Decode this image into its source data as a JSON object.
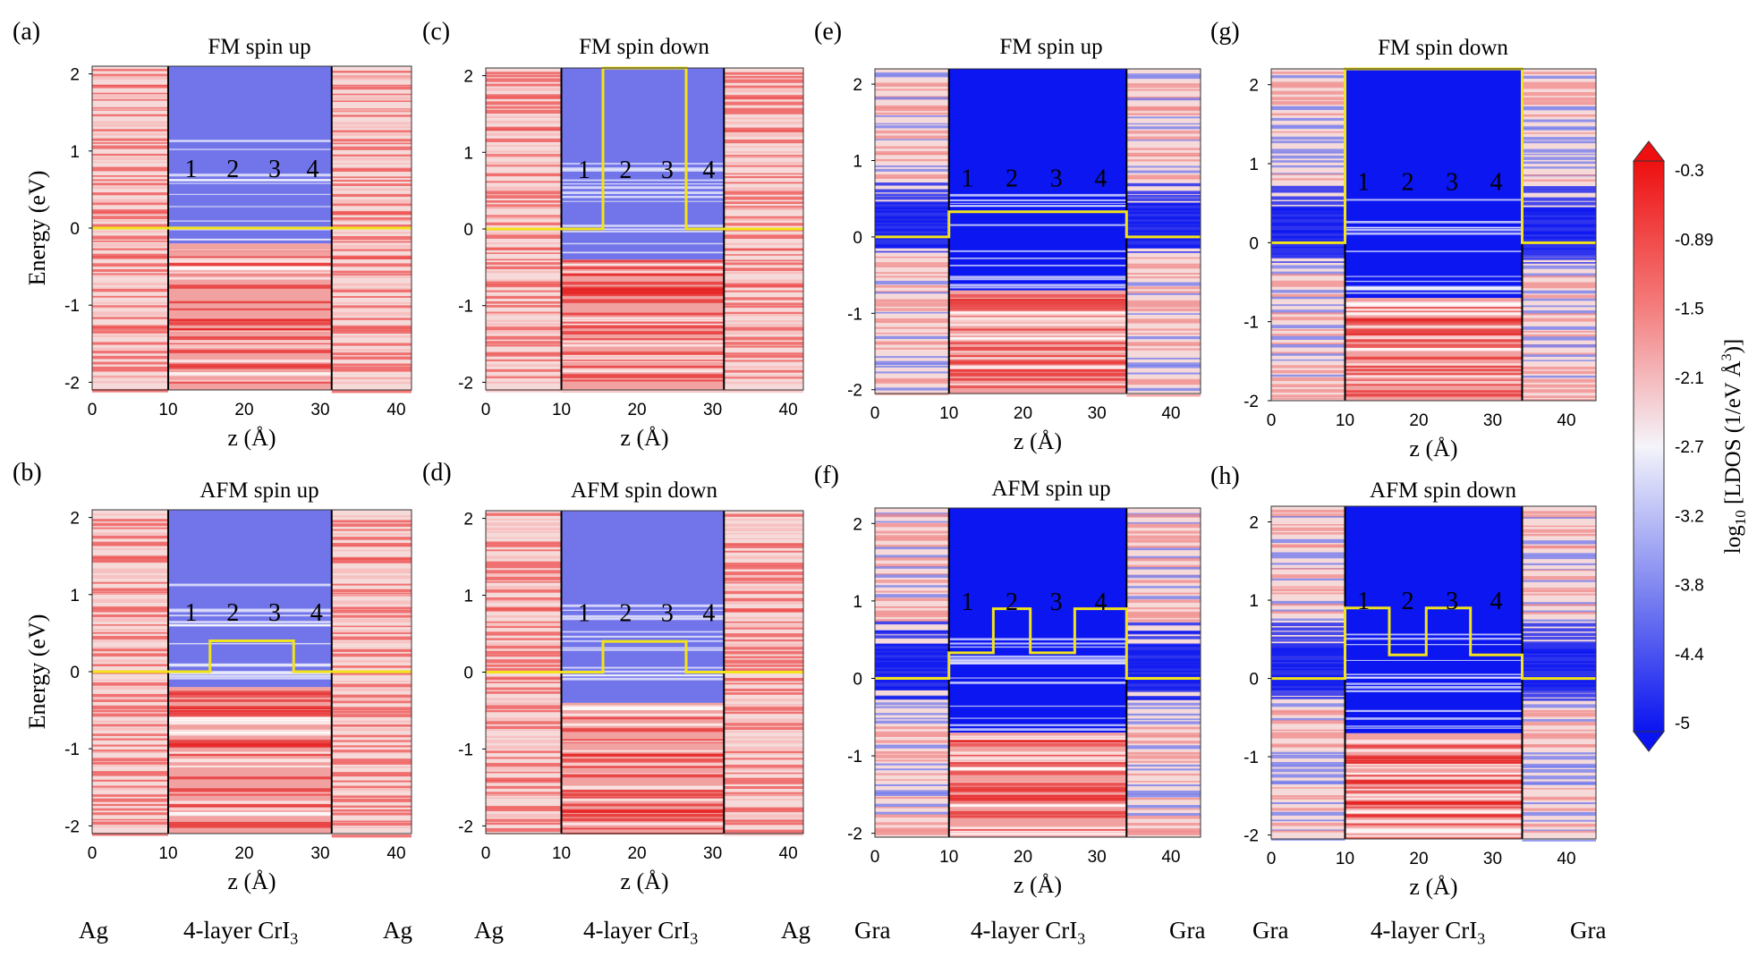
{
  "figure": {
    "xlabel": "z (Å)",
    "ylabel": "Energy (eV)",
    "colorbar_label_prefix": "log",
    "colorbar_label_sub": "10",
    "colorbar_label_main": " [LDOS (1/eV Å",
    "colorbar_label_sup": "3",
    "colorbar_label_end": ")]",
    "colorbar_ticks": [
      "-0.3",
      "-0.89",
      "-1.5",
      "-2.1",
      "-2.7",
      "-3.2",
      "-3.8",
      "-4.4",
      "-5"
    ],
    "materials": [
      {
        "left": "Ag",
        "middle": "4-layer CrI",
        "sub": "3",
        "right": "Ag"
      },
      {
        "left": "Ag",
        "middle": "4-layer CrI",
        "sub": "3",
        "right": "Ag"
      },
      {
        "left": "Gra",
        "middle": "4-layer CrI",
        "sub": "3",
        "right": "Gra"
      },
      {
        "left": "Gra",
        "middle": "4-layer CrI",
        "sub": "3",
        "right": "Gra"
      }
    ],
    "colors": {
      "red": "#ee1c1c",
      "blue": "#0b16f0",
      "white": "#f4f4f8",
      "yellow": "#f2e31a"
    }
  },
  "chart_data": [
    {
      "panel": "(a)",
      "title": "FM spin up",
      "type": "heatmap",
      "substrate": "Ag",
      "x_ticks": [
        "0",
        "10",
        "20",
        "30",
        "40"
      ],
      "y_ticks": [
        "2",
        "1",
        "0",
        "-1",
        "-2"
      ],
      "xlim": [
        0,
        42
      ],
      "ylim": [
        -2.1,
        2.1
      ],
      "interfaces_z": [
        10,
        31.5
      ],
      "layer_labels": [
        "1",
        "2",
        "3",
        "4"
      ],
      "layer_label_z": [
        13,
        18.5,
        24,
        29
      ],
      "layer_label_e": 0.78,
      "band_edge": {
        "z": [
          0,
          42
        ],
        "e": [
          0,
          0
        ]
      }
    },
    {
      "panel": "(b)",
      "title": "AFM spin up",
      "type": "heatmap",
      "substrate": "Ag",
      "x_ticks": [
        "0",
        "10",
        "20",
        "30",
        "40"
      ],
      "y_ticks": [
        "2",
        "1",
        "0",
        "-1",
        "-2"
      ],
      "xlim": [
        0,
        42
      ],
      "ylim": [
        -2.1,
        2.1
      ],
      "interfaces_z": [
        10,
        31.5
      ],
      "layer_labels": [
        "1",
        "2",
        "3",
        "4"
      ],
      "layer_label_z": [
        13,
        18.5,
        24,
        29.5
      ],
      "layer_label_e": 0.78,
      "band_edge": {
        "z": [
          0,
          15.5,
          15.5,
          26.5,
          26.5,
          42
        ],
        "e": [
          0,
          0,
          0.4,
          0.4,
          0,
          0
        ]
      }
    },
    {
      "panel": "(c)",
      "title": "FM spin down",
      "type": "heatmap",
      "substrate": "Ag",
      "x_ticks": [
        "0",
        "10",
        "20",
        "30",
        "40"
      ],
      "y_ticks": [
        "2",
        "1",
        "0",
        "-1",
        "-2"
      ],
      "xlim": [
        0,
        42
      ],
      "ylim": [
        -2.1,
        2.1
      ],
      "interfaces_z": [
        10,
        31.5
      ],
      "layer_labels": [
        "1",
        "2",
        "3",
        "4"
      ],
      "layer_label_z": [
        13,
        18.5,
        24,
        29.5
      ],
      "layer_label_e": 0.78,
      "band_edge": {
        "z": [
          0,
          15.5,
          15.5,
          26.5,
          26.5,
          42
        ],
        "e": [
          0,
          0,
          2.1,
          2.1,
          0,
          0
        ]
      }
    },
    {
      "panel": "(d)",
      "title": "AFM spin down",
      "type": "heatmap",
      "substrate": "Ag",
      "x_ticks": [
        "0",
        "10",
        "20",
        "30",
        "40"
      ],
      "y_ticks": [
        "2",
        "1",
        "0",
        "-1",
        "-2"
      ],
      "xlim": [
        0,
        42
      ],
      "ylim": [
        -2.1,
        2.1
      ],
      "interfaces_z": [
        10,
        31.5
      ],
      "layer_labels": [
        "1",
        "2",
        "3",
        "4"
      ],
      "layer_label_z": [
        13,
        18.5,
        24,
        29.5
      ],
      "layer_label_e": 0.78,
      "band_edge": {
        "z": [
          0,
          15.5,
          15.5,
          26.5,
          26.5,
          42
        ],
        "e": [
          0,
          0,
          0.4,
          0.4,
          0,
          0
        ]
      }
    },
    {
      "panel": "(e)",
      "title": "FM spin up",
      "type": "heatmap",
      "substrate": "Gra",
      "x_ticks": [
        "0",
        "10",
        "20",
        "30",
        "40"
      ],
      "y_ticks": [
        "2",
        "1",
        "0",
        "-1",
        "-2"
      ],
      "xlim": [
        0,
        44
      ],
      "ylim": [
        -2.05,
        2.2
      ],
      "interfaces_z": [
        10,
        34
      ],
      "layer_labels": [
        "1",
        "2",
        "3",
        "4"
      ],
      "layer_label_z": [
        12.5,
        18.5,
        24.5,
        30.5
      ],
      "layer_label_e": 0.78,
      "band_edge": {
        "z": [
          0,
          10,
          10,
          34,
          34,
          44
        ],
        "e": [
          0,
          0,
          0.33,
          0.33,
          0,
          0
        ]
      }
    },
    {
      "panel": "(f)",
      "title": "AFM spin up",
      "type": "heatmap",
      "substrate": "Gra",
      "x_ticks": [
        "0",
        "10",
        "20",
        "30",
        "40"
      ],
      "y_ticks": [
        "2",
        "1",
        "0",
        "-1",
        "-2"
      ],
      "xlim": [
        0,
        44
      ],
      "ylim": [
        -2.05,
        2.2
      ],
      "interfaces_z": [
        10,
        34
      ],
      "layer_labels": [
        "1",
        "2",
        "3",
        "4"
      ],
      "layer_label_z": [
        12.5,
        18.5,
        24.5,
        30.5
      ],
      "layer_label_e": 1.0,
      "band_edge": {
        "z": [
          0,
          10,
          10,
          16,
          16,
          21,
          21,
          27,
          27,
          34,
          34,
          44
        ],
        "e": [
          0,
          0,
          0.33,
          0.33,
          0.9,
          0.9,
          0.33,
          0.33,
          0.9,
          0.9,
          0,
          0
        ]
      }
    },
    {
      "panel": "(g)",
      "title": "FM spin down",
      "type": "heatmap",
      "substrate": "Gra",
      "x_ticks": [
        "0",
        "10",
        "20",
        "30",
        "40"
      ],
      "y_ticks": [
        "2",
        "1",
        "0",
        "-1",
        "-2"
      ],
      "xlim": [
        0,
        44
      ],
      "ylim": [
        -2.0,
        2.2
      ],
      "interfaces_z": [
        10,
        34
      ],
      "layer_labels": [
        "1",
        "2",
        "3",
        "4"
      ],
      "layer_label_z": [
        12.5,
        18.5,
        24.5,
        30.5
      ],
      "layer_label_e": 0.78,
      "band_edge": {
        "z": [
          0,
          10,
          10,
          34,
          34,
          44
        ],
        "e": [
          0,
          0,
          2.2,
          2.2,
          0,
          0
        ]
      }
    },
    {
      "panel": "(h)",
      "title": "AFM spin down",
      "type": "heatmap",
      "substrate": "Gra",
      "x_ticks": [
        "0",
        "10",
        "20",
        "30",
        "40"
      ],
      "y_ticks": [
        "2",
        "1",
        "0",
        "-1",
        "-2"
      ],
      "xlim": [
        0,
        44
      ],
      "ylim": [
        -2.05,
        2.2
      ],
      "interfaces_z": [
        10,
        34
      ],
      "layer_labels": [
        "1",
        "2",
        "3",
        "4"
      ],
      "layer_label_z": [
        12.5,
        18.5,
        24.5,
        30.5
      ],
      "layer_label_e": 1.0,
      "band_edge": {
        "z": [
          0,
          10,
          10,
          16,
          16,
          21,
          21,
          27,
          27,
          34,
          34,
          44
        ],
        "e": [
          0,
          0,
          0.9,
          0.9,
          0.3,
          0.3,
          0.9,
          0.9,
          0.3,
          0.3,
          0,
          0
        ]
      }
    }
  ]
}
